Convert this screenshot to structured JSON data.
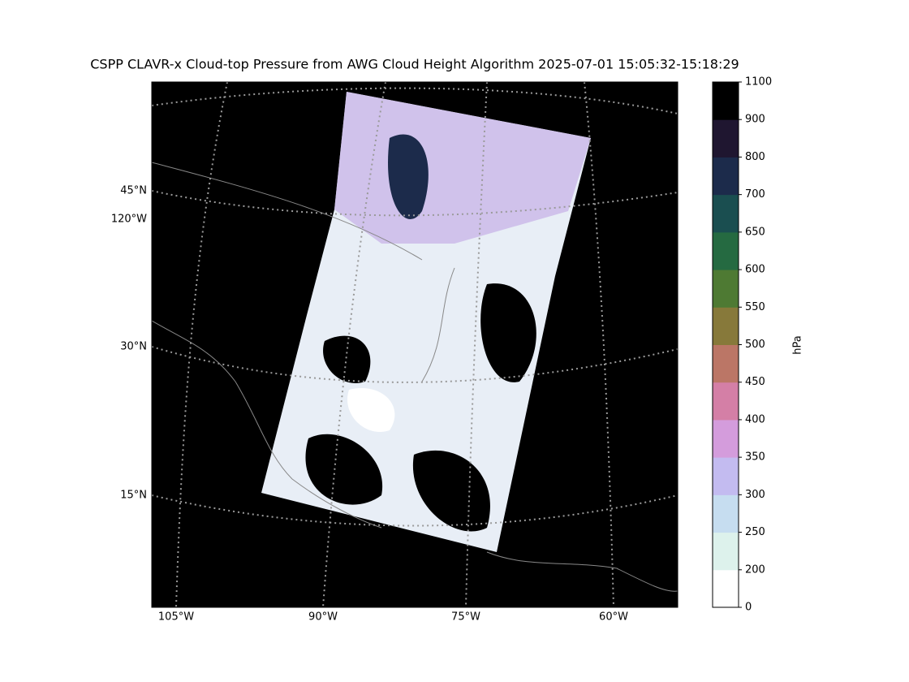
{
  "title": "CSPP CLAVR-x Cloud-top Pressure from AWG Cloud Height Algorithm 2025-07-01 15:05:32-15:18:29",
  "map": {
    "lat_labels": [
      "45°N",
      "120°W",
      "30°N",
      "15°N"
    ],
    "lon_labels": [
      "105°W",
      "90°W",
      "75°W",
      "60°W"
    ]
  },
  "colorbar": {
    "label": "hPa",
    "ticks": [
      0,
      200,
      250,
      300,
      350,
      400,
      450,
      500,
      550,
      600,
      650,
      700,
      800,
      900,
      1100
    ],
    "colors": [
      "#ffffff",
      "#ddf2ec",
      "#c6ddf0",
      "#c3bbf0",
      "#d49cdc",
      "#d47fa6",
      "#bb7666",
      "#87793a",
      "#4e7a33",
      "#256a41",
      "#1a4e50",
      "#1c2b4b",
      "#1f1630",
      "#000000"
    ]
  }
}
